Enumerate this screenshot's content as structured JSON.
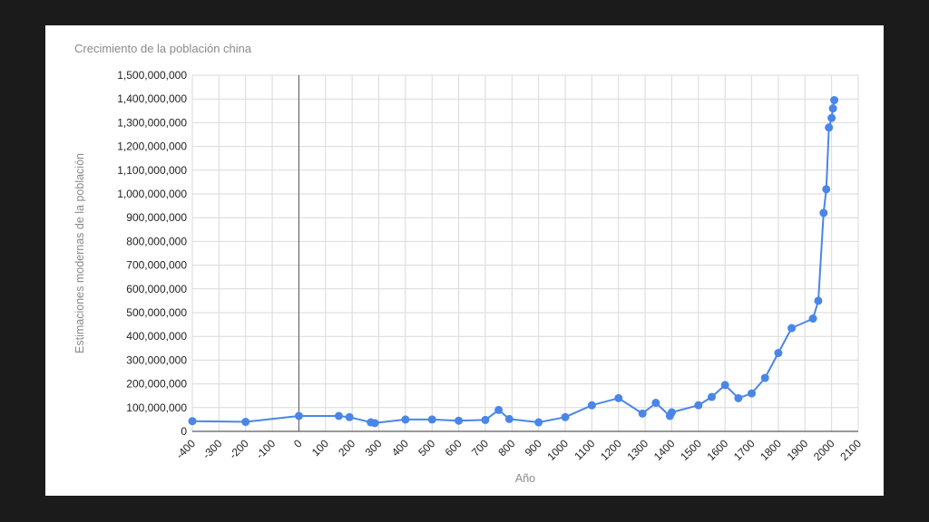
{
  "chart_data": {
    "type": "line",
    "title": "Crecimiento de la población china",
    "xlabel": "Año",
    "ylabel": "Estimaciones modernas de la población",
    "xlim": [
      -400,
      2100
    ],
    "ylim": [
      0,
      1500000000
    ],
    "x_ticks": [
      -400,
      -300,
      -200,
      -100,
      0,
      100,
      200,
      300,
      400,
      500,
      600,
      700,
      800,
      900,
      1000,
      1100,
      1200,
      1300,
      1400,
      1500,
      1600,
      1700,
      1800,
      1900,
      2000,
      2100
    ],
    "x_tick_labels": [
      "-400",
      "-300",
      "-200",
      "-100",
      "0",
      "100",
      "200",
      "300",
      "400",
      "500",
      "600",
      "700",
      "800",
      "900",
      "1000",
      "1100",
      "1200",
      "1300",
      "1400",
      "1500",
      "1600",
      "1700",
      "1800",
      "1900",
      "2000",
      "2100"
    ],
    "y_ticks": [
      0,
      100000000,
      200000000,
      300000000,
      400000000,
      500000000,
      600000000,
      700000000,
      800000000,
      900000000,
      1000000000,
      1100000000,
      1200000000,
      1300000000,
      1400000000,
      1500000000
    ],
    "y_tick_labels": [
      "0",
      "100,000,000",
      "200,000,000",
      "300,000,000",
      "400,000,000",
      "500,000,000",
      "600,000,000",
      "700,000,000",
      "800,000,000",
      "900,000,000",
      "1,000,000,000",
      "1,100,000,000",
      "1,200,000,000",
      "1,300,000,000",
      "1,400,000,000",
      "1,500,000,000"
    ],
    "grid": true,
    "legend": "none",
    "color": "#4a86e8",
    "series": [
      {
        "x": [
          -400,
          -200,
          0,
          150,
          190,
          270,
          285,
          400,
          500,
          600,
          700,
          750,
          790,
          900,
          1000,
          1100,
          1200,
          1290,
          1340,
          1400,
          1393,
          1500,
          1550,
          1600,
          1650,
          1700,
          1750,
          1800,
          1850,
          1930,
          1950,
          1970,
          1980,
          1990,
          2000,
          2005,
          2010
        ],
        "values": [
          43000000,
          40000000,
          65000000,
          65000000,
          60000000,
          38000000,
          35000000,
          50000000,
          50000000,
          45000000,
          48000000,
          90000000,
          52000000,
          38000000,
          60000000,
          110000000,
          140000000,
          75000000,
          120000000,
          80000000,
          65000000,
          110000000,
          145000000,
          195000000,
          140000000,
          160000000,
          225000000,
          330000000,
          435000000,
          475000000,
          550000000,
          920000000,
          1020000000,
          1280000000,
          1320000000,
          1360000000,
          1395000000
        ]
      }
    ]
  }
}
